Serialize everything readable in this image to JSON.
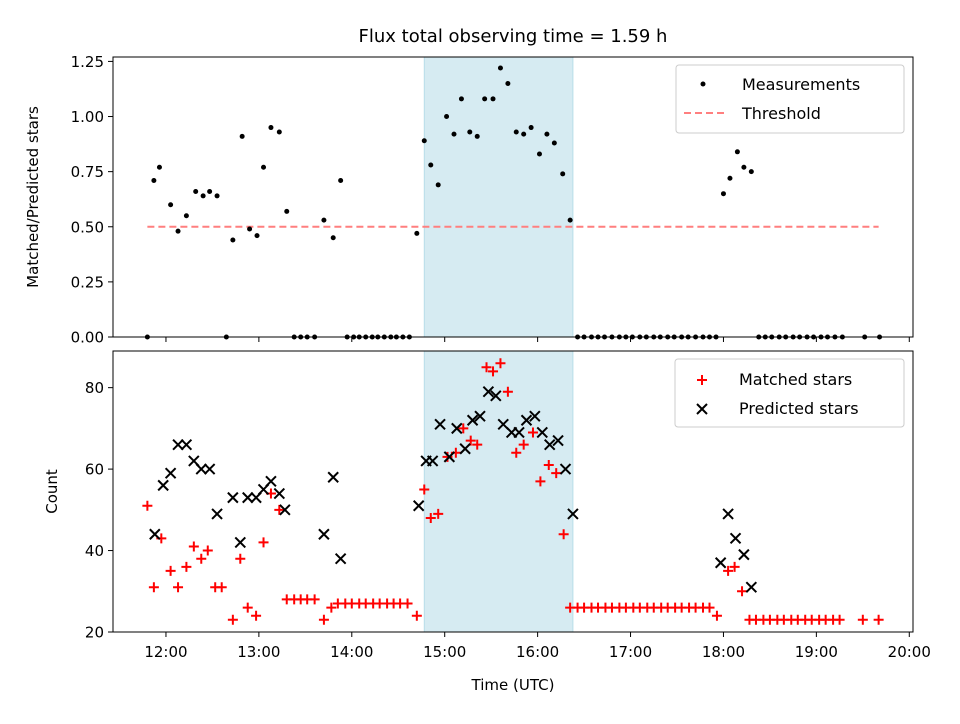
{
  "title": "Flux total observing time = 1.59 h",
  "xlabel": "Time (UTC)",
  "xticks": [
    {
      "t": 12,
      "label": "12:00"
    },
    {
      "t": 13,
      "label": "13:00"
    },
    {
      "t": 14,
      "label": "14:00"
    },
    {
      "t": 15,
      "label": "15:00"
    },
    {
      "t": 16,
      "label": "16:00"
    },
    {
      "t": 17,
      "label": "17:00"
    },
    {
      "t": 18,
      "label": "18:00"
    },
    {
      "t": 19,
      "label": "19:00"
    },
    {
      "t": 20,
      "label": "20:00"
    }
  ],
  "shaded_window": {
    "start": 14.78,
    "end": 16.38,
    "color": "#add8e6"
  },
  "chart_data": [
    {
      "type": "scatter",
      "id": "ratio",
      "ylabel": "Matched/Predicted stars",
      "xlim": [
        11.43,
        20.04
      ],
      "ylim": [
        0,
        1.27
      ],
      "yticks": [
        {
          "v": 0,
          "label": "0.00"
        },
        {
          "v": 0.25,
          "label": "0.25"
        },
        {
          "v": 0.5,
          "label": "0.50"
        },
        {
          "v": 0.75,
          "label": "0.75"
        },
        {
          "v": 1.0,
          "label": "1.00"
        },
        {
          "v": 1.25,
          "label": "1.25"
        }
      ],
      "legend_position": "upper right",
      "threshold": {
        "name": "Threshold",
        "y": 0.5,
        "x": [
          11.8,
          19.67
        ],
        "color": "#ff7f7f"
      },
      "series": [
        {
          "name": "Measurements",
          "color": "#000000",
          "x": [
            11.8,
            11.87,
            11.93,
            12.05,
            12.13,
            12.22,
            12.32,
            12.4,
            12.47,
            12.55,
            12.65,
            12.72,
            12.82,
            12.9,
            12.98,
            13.05,
            13.13,
            13.22,
            13.3,
            13.38,
            13.45,
            13.52,
            13.6,
            13.7,
            13.8,
            13.88,
            13.95,
            14.02,
            14.08,
            14.15,
            14.22,
            14.28,
            14.35,
            14.42,
            14.48,
            14.55,
            14.62,
            14.7,
            14.78,
            14.85,
            14.93,
            15.02,
            15.1,
            15.18,
            15.27,
            15.35,
            15.43,
            15.52,
            15.6,
            15.68,
            15.77,
            15.85,
            15.93,
            16.02,
            16.1,
            16.18,
            16.27,
            16.35,
            16.43,
            16.5,
            16.58,
            16.65,
            16.72,
            16.8,
            16.88,
            16.95,
            17.02,
            17.1,
            17.17,
            17.25,
            17.32,
            17.4,
            17.47,
            17.55,
            17.62,
            17.7,
            17.78,
            17.85,
            17.92,
            18.0,
            18.07,
            18.15,
            18.22,
            18.3,
            18.38,
            18.45,
            18.52,
            18.6,
            18.67,
            18.75,
            18.82,
            18.9,
            18.97,
            19.05,
            19.12,
            19.2,
            19.28,
            19.52,
            19.68
          ],
          "y": [
            0.0,
            0.71,
            0.77,
            0.6,
            0.48,
            0.55,
            0.66,
            0.64,
            0.66,
            0.64,
            0.0,
            0.44,
            0.91,
            0.49,
            0.46,
            0.77,
            0.95,
            0.93,
            0.57,
            0.0,
            0.0,
            0.0,
            0.0,
            0.53,
            0.45,
            0.71,
            0.0,
            0.0,
            0.0,
            0.0,
            0.0,
            0.0,
            0.0,
            0.0,
            0.0,
            0.0,
            0.0,
            0.47,
            0.89,
            0.78,
            0.69,
            1.0,
            0.92,
            1.08,
            0.93,
            0.91,
            1.08,
            1.08,
            1.22,
            1.15,
            0.93,
            0.92,
            0.95,
            0.83,
            0.92,
            0.88,
            0.74,
            0.53,
            0.0,
            0.0,
            0.0,
            0.0,
            0.0,
            0.0,
            0.0,
            0.0,
            0.0,
            0.0,
            0.0,
            0.0,
            0.0,
            0.0,
            0.0,
            0.0,
            0.0,
            0.0,
            0.0,
            0.0,
            0.0,
            0.65,
            0.72,
            0.84,
            0.77,
            0.75,
            0.0,
            0.0,
            0.0,
            0.0,
            0.0,
            0.0,
            0.0,
            0.0,
            0.0,
            0.0,
            0.0,
            0.0,
            0.0,
            0.0,
            0.0
          ]
        }
      ]
    },
    {
      "type": "scatter",
      "id": "counts",
      "ylabel": "Count",
      "xlim": [
        11.43,
        20.04
      ],
      "ylim": [
        20,
        89
      ],
      "yticks": [
        {
          "v": 20,
          "label": "20"
        },
        {
          "v": 40,
          "label": "40"
        },
        {
          "v": 60,
          "label": "60"
        },
        {
          "v": 80,
          "label": "80"
        }
      ],
      "legend_position": "upper right",
      "series": [
        {
          "name": "Matched stars",
          "marker": "plus",
          "color": "#ff0000",
          "x": [
            11.8,
            11.87,
            11.95,
            12.05,
            12.13,
            12.22,
            12.3,
            12.38,
            12.45,
            12.53,
            12.6,
            12.72,
            12.8,
            12.88,
            12.97,
            13.05,
            13.13,
            13.22,
            13.3,
            13.38,
            13.45,
            13.52,
            13.6,
            13.7,
            13.78,
            13.85,
            13.93,
            14.0,
            14.08,
            14.15,
            14.23,
            14.3,
            14.38,
            14.45,
            14.52,
            14.6,
            14.7,
            14.78,
            14.85,
            14.93,
            15.03,
            15.12,
            15.2,
            15.28,
            15.35,
            15.45,
            15.52,
            15.6,
            15.68,
            15.77,
            15.85,
            15.95,
            16.03,
            16.12,
            16.2,
            16.28,
            16.35,
            16.43,
            16.5,
            16.58,
            16.65,
            16.73,
            16.8,
            16.88,
            16.95,
            17.03,
            17.1,
            17.18,
            17.25,
            17.33,
            17.4,
            17.48,
            17.55,
            17.63,
            17.7,
            17.78,
            17.85,
            17.93,
            18.05,
            18.12,
            18.2,
            18.28,
            18.35,
            18.43,
            18.5,
            18.58,
            18.65,
            18.73,
            18.8,
            18.88,
            18.95,
            19.03,
            19.1,
            19.18,
            19.25,
            19.5,
            19.67
          ],
          "y": [
            51,
            31,
            43,
            35,
            31,
            36,
            41,
            38,
            40,
            31,
            31,
            23,
            38,
            26,
            24,
            42,
            54,
            50,
            28,
            28,
            28,
            28,
            28,
            23,
            26,
            27,
            27,
            27,
            27,
            27,
            27,
            27,
            27,
            27,
            27,
            27,
            24,
            55,
            48,
            49,
            63,
            64,
            70,
            67,
            66,
            85,
            84,
            86,
            79,
            64,
            66,
            69,
            57,
            61,
            59,
            44,
            26,
            26,
            26,
            26,
            26,
            26,
            26,
            26,
            26,
            26,
            26,
            26,
            26,
            26,
            26,
            26,
            26,
            26,
            26,
            26,
            26,
            24,
            35,
            36,
            30,
            23,
            23,
            23,
            23,
            23,
            23,
            23,
            23,
            23,
            23,
            23,
            23,
            23,
            23,
            23,
            23
          ]
        },
        {
          "name": "Predicted stars",
          "marker": "x",
          "color": "#000000",
          "x": [
            11.88,
            11.97,
            12.05,
            12.13,
            12.22,
            12.3,
            12.38,
            12.47,
            12.55,
            12.72,
            12.8,
            12.88,
            12.97,
            13.05,
            13.13,
            13.22,
            13.28,
            13.7,
            13.8,
            13.88,
            14.72,
            14.8,
            14.87,
            14.95,
            15.05,
            15.13,
            15.22,
            15.3,
            15.38,
            15.47,
            15.55,
            15.63,
            15.72,
            15.8,
            15.88,
            15.97,
            16.05,
            16.13,
            16.22,
            16.3,
            16.38,
            17.97,
            18.05,
            18.13,
            18.22,
            18.3
          ],
          "y": [
            44,
            56,
            59,
            66,
            66,
            62,
            60,
            60,
            49,
            53,
            42,
            53,
            53,
            55,
            57,
            54,
            50,
            44,
            58,
            38,
            51,
            62,
            62,
            71,
            63,
            70,
            65,
            72,
            73,
            79,
            78,
            71,
            69,
            69,
            72,
            73,
            69,
            66,
            67,
            60,
            49,
            37,
            49,
            43,
            39,
            31
          ]
        }
      ]
    }
  ]
}
